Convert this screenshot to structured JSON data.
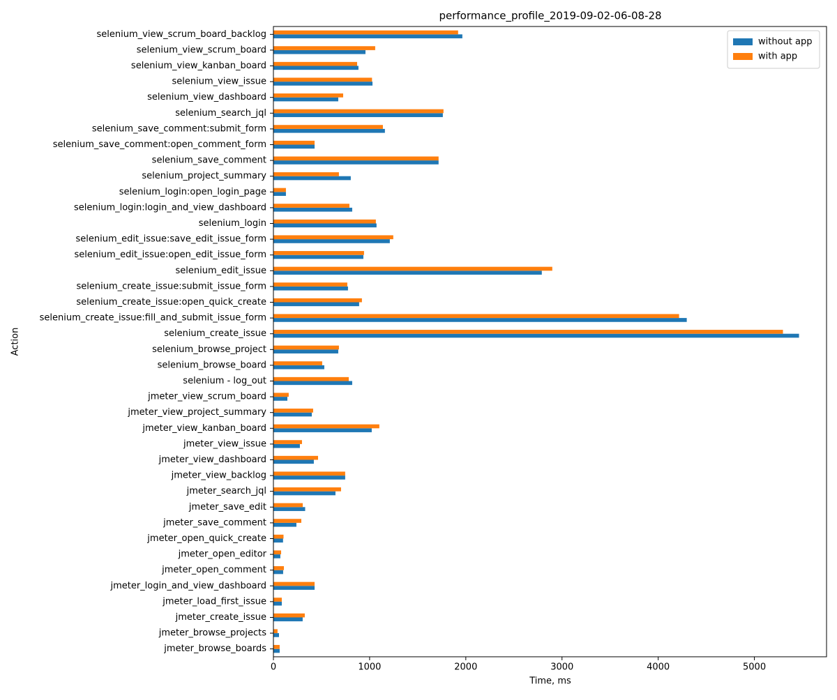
{
  "chart_data": {
    "type": "barh",
    "title": "performance_profile_2019-09-02-06-08-28",
    "x_label": "Time, ms",
    "y_label": "Action",
    "categories": [
      "selenium_view_scrum_board_backlog",
      "selenium_view_scrum_board",
      "selenium_view_kanban_board",
      "selenium_view_issue",
      "selenium_view_dashboard",
      "selenium_search_jql",
      "selenium_save_comment:submit_form",
      "selenium_save_comment:open_comment_form",
      "selenium_save_comment",
      "selenium_project_summary",
      "selenium_login:open_login_page",
      "selenium_login:login_and_view_dashboard",
      "selenium_login",
      "selenium_edit_issue:save_edit_issue_form",
      "selenium_edit_issue:open_edit_issue_form",
      "selenium_edit_issue",
      "selenium_create_issue:submit_issue_form",
      "selenium_create_issue:open_quick_create",
      "selenium_create_issue:fill_and_submit_issue_form",
      "selenium_create_issue",
      "selenium_browse_project",
      "selenium_browse_board",
      "selenium - log_out",
      "jmeter_view_scrum_board",
      "jmeter_view_project_summary",
      "jmeter_view_kanban_board",
      "jmeter_view_issue",
      "jmeter_view_dashboard",
      "jmeter_view_backlog",
      "jmeter_search_jql",
      "jmeter_save_edit",
      "jmeter_save_comment",
      "jmeter_open_quick_create",
      "jmeter_open_editor",
      "jmeter_open_comment",
      "jmeter_login_and_view_dashboard",
      "jmeter_load_first_issue",
      "jmeter_create_issue",
      "jmeter_browse_projects",
      "jmeter_browse_boards"
    ],
    "series": [
      {
        "name": "without app",
        "color": "#1f77b4",
        "values": [
          1964,
          957,
          884,
          1030,
          674,
          1761,
          1159,
          428,
          1717,
          804,
          130,
          819,
          1072,
          1210,
          935,
          2790,
          775,
          891,
          4297,
          5464,
          674,
          529,
          819,
          145,
          399,
          1022,
          275,
          420,
          746,
          645,
          330,
          239,
          100,
          72,
          101,
          428,
          87,
          304,
          58,
          65
        ]
      },
      {
        "name": "with app",
        "color": "#ff7f0e",
        "values": [
          1920,
          1058,
          870,
          1025,
          725,
          1768,
          1138,
          428,
          1717,
          681,
          130,
          790,
          1065,
          1246,
          942,
          2899,
          768,
          920,
          4217,
          5297,
          681,
          507,
          783,
          159,
          413,
          1101,
          297,
          464,
          746,
          703,
          305,
          290,
          105,
          80,
          109,
          428,
          87,
          326,
          43,
          65
        ]
      }
    ],
    "xlim": [
      0,
      5750
    ],
    "xticks": [
      0,
      1000,
      2000,
      3000,
      4000,
      5000
    ],
    "legend": "upper right"
  }
}
